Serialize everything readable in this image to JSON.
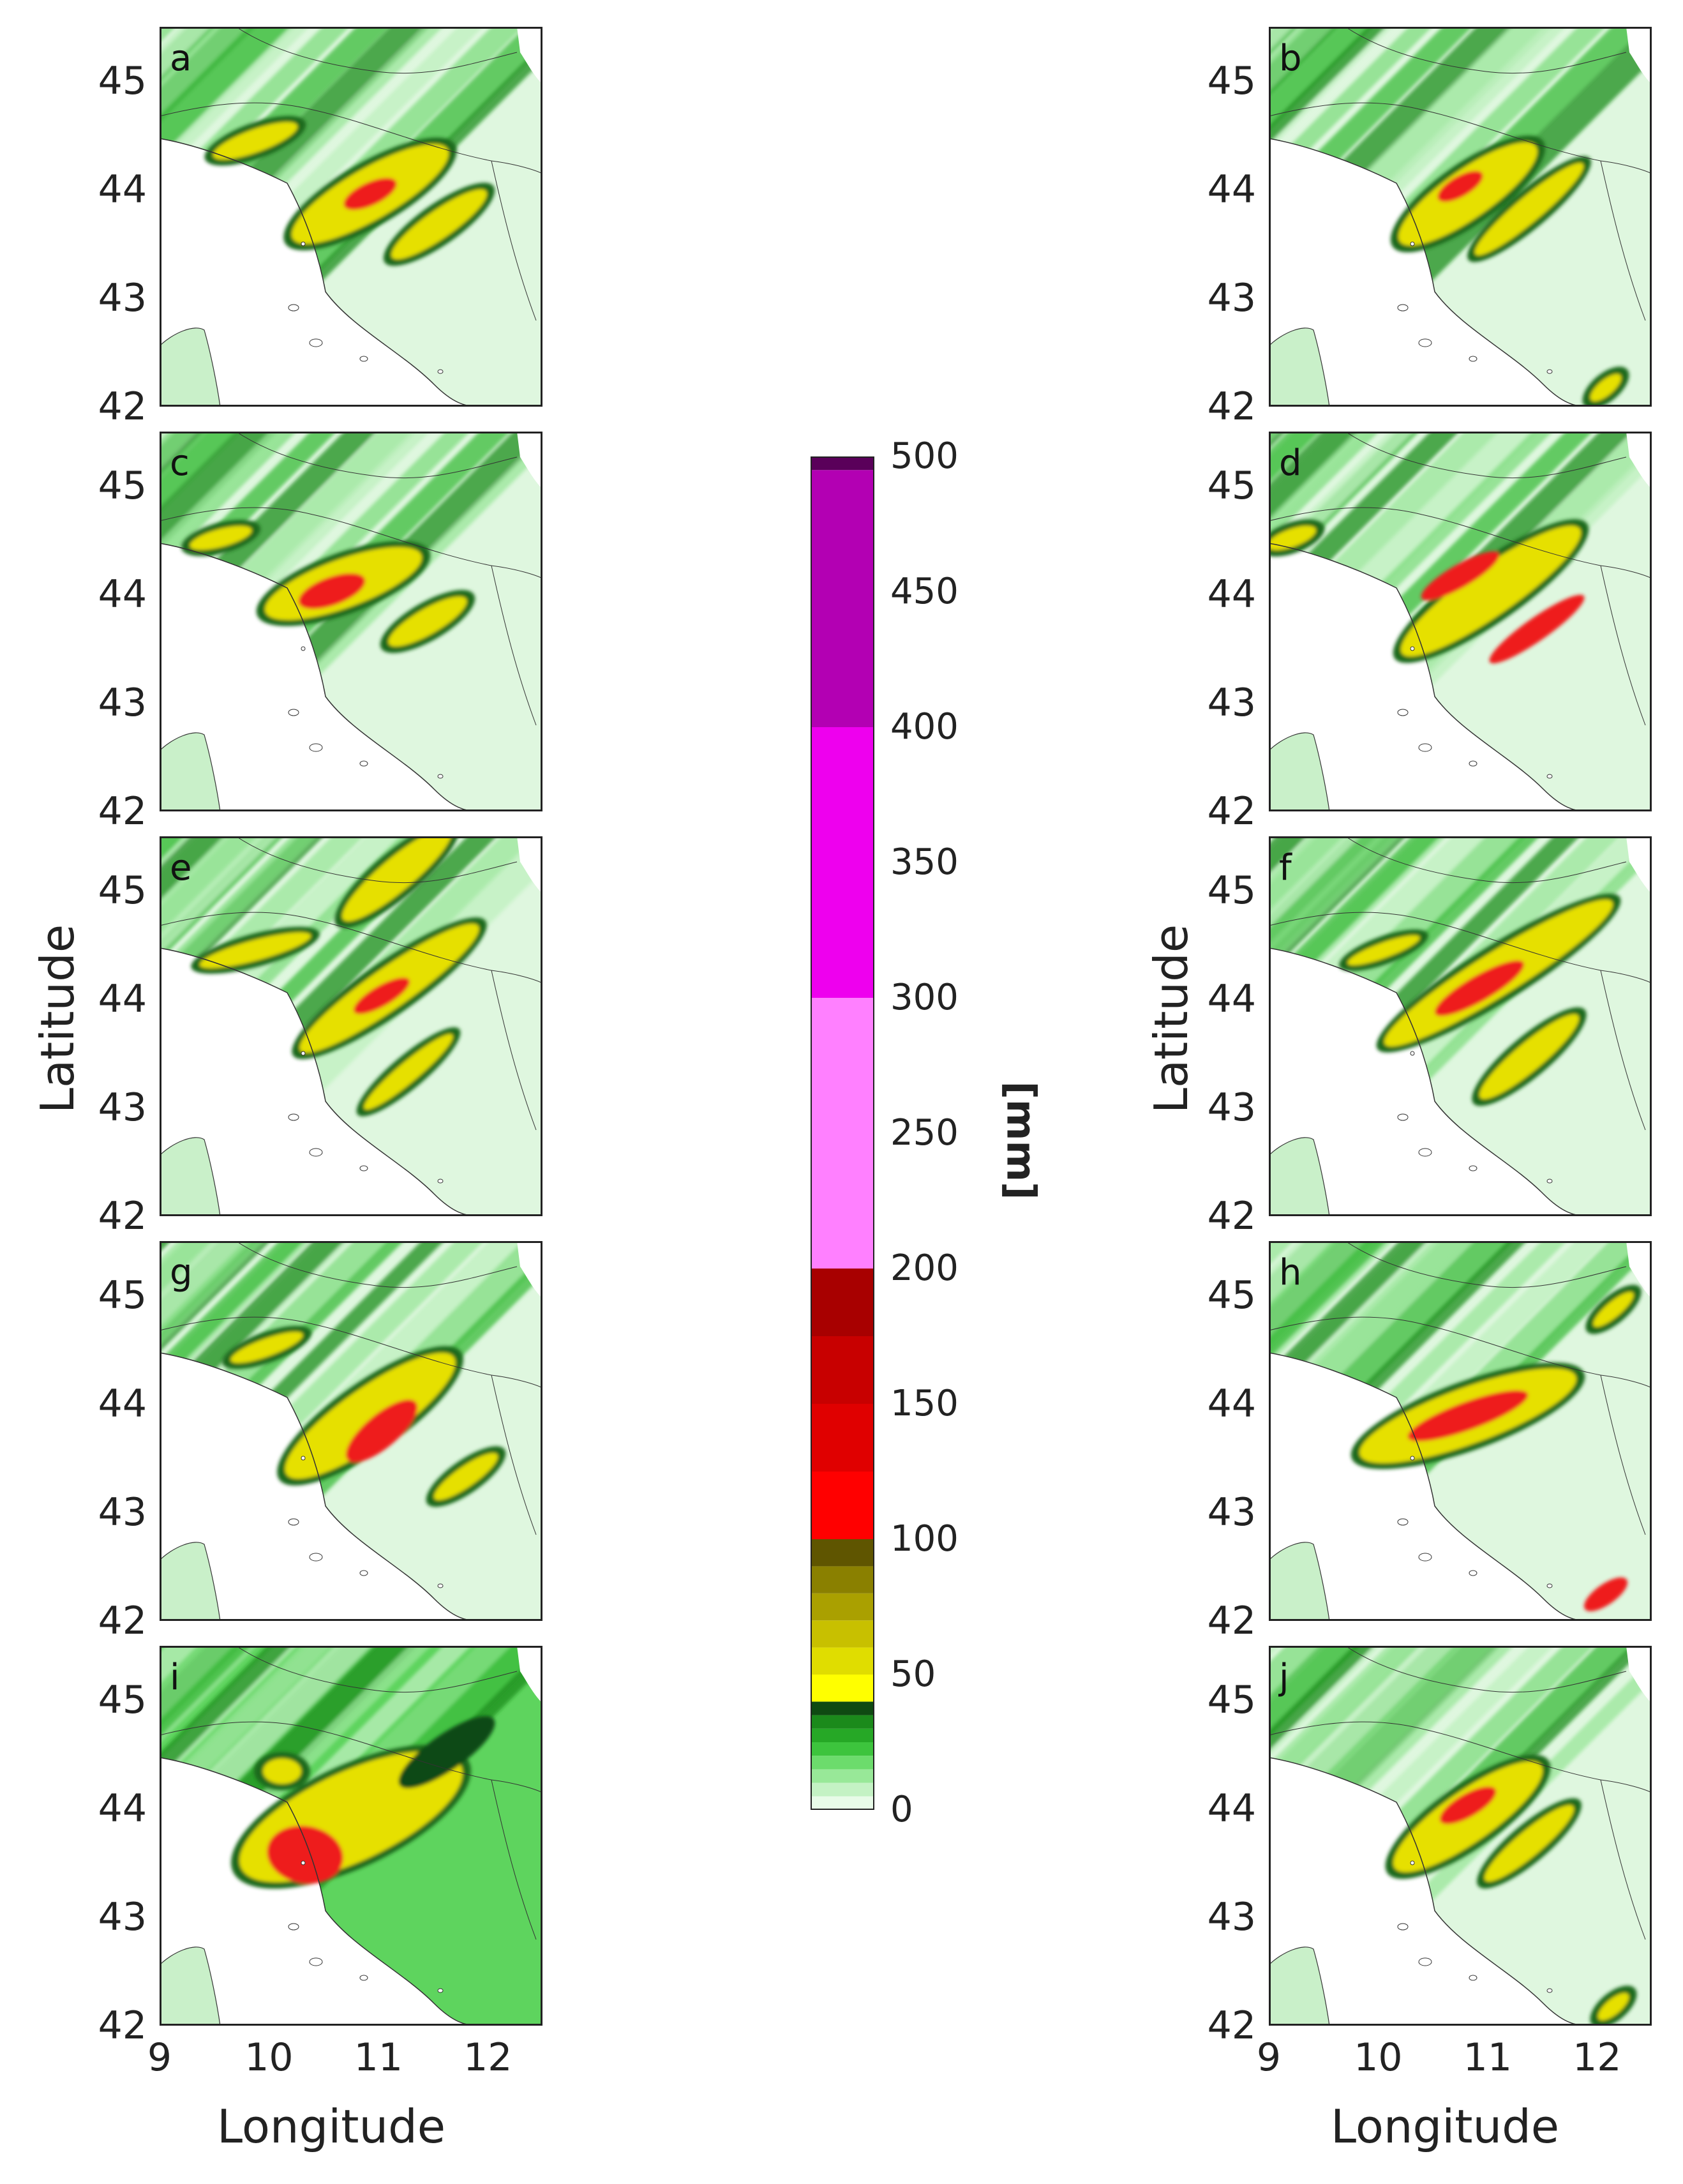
{
  "panels": [
    {
      "letter": "a"
    },
    {
      "letter": "b"
    },
    {
      "letter": "c"
    },
    {
      "letter": "d"
    },
    {
      "letter": "e"
    },
    {
      "letter": "f"
    },
    {
      "letter": "g"
    },
    {
      "letter": "h"
    },
    {
      "letter": "i"
    },
    {
      "letter": "j"
    }
  ],
  "axes": {
    "ylabel": "Latitude",
    "xlabel": "Longitude",
    "yticks": [
      "45",
      "44",
      "43",
      "42"
    ],
    "xticks": [
      "9",
      "10",
      "11",
      "12"
    ],
    "lon_range": [
      9,
      12.5
    ],
    "lat_range": [
      42,
      45.5
    ]
  },
  "colorbar": {
    "unit": "[mm]",
    "ticks": [
      "500",
      "450",
      "400",
      "350",
      "300",
      "250",
      "200",
      "150",
      "100",
      "50",
      "0"
    ],
    "levels": [
      0,
      5,
      10,
      15,
      20,
      30,
      40,
      50,
      60,
      70,
      80,
      90,
      100,
      125,
      150,
      175,
      200,
      300,
      400,
      500
    ],
    "colors": [
      "#e6fbe6",
      "#b9f2b9",
      "#8de88d",
      "#55d655",
      "#2fb52f",
      "#1f8c1f",
      "#0f5a0f",
      "#1a3a12",
      "#ffff00",
      "#e3e000",
      "#c9c300",
      "#aaa000",
      "#8a8000",
      "#6e6400",
      "#4f4800",
      "#ff0000",
      "#e00000",
      "#c40000",
      "#a80000",
      "#8b0000",
      "#ff80ff",
      "#ee00ee",
      "#b300b3",
      "#5a005a"
    ]
  }
}
